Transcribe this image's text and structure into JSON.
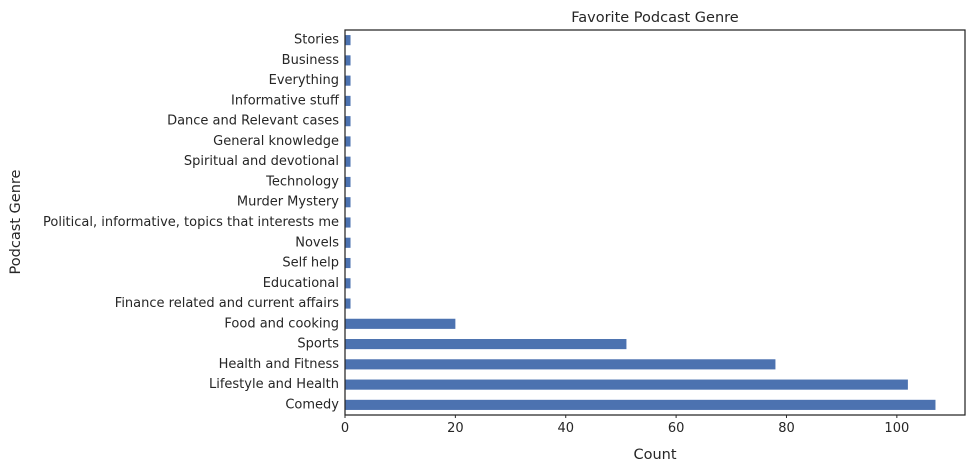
{
  "chart_data": {
    "type": "bar",
    "orientation": "horizontal",
    "title": "Favorite Podcast Genre",
    "xlabel": "Count",
    "ylabel": "Podcast Genre",
    "categories": [
      "Comedy",
      "Lifestyle and Health",
      "Health and Fitness",
      "Sports",
      "Food and cooking",
      "Finance related and current affairs",
      "Educational ",
      "Self help",
      "Novels",
      "Political, informative, topics that interests me",
      "Murder Mystery ",
      "Technology",
      "Spiritual and devotional",
      "General knowledge ",
      "Dance and Relevant cases ",
      "Informative stuff",
      "Everything",
      "Business",
      "Stories "
    ],
    "values": [
      107,
      102,
      78,
      51,
      20,
      1,
      1,
      1,
      1,
      1,
      1,
      1,
      1,
      1,
      1,
      1,
      1,
      1,
      1
    ],
    "xlim": [
      0,
      112.35
    ],
    "xticks": [
      0,
      20,
      40,
      60,
      80,
      100
    ],
    "grid": false,
    "legend": "none",
    "bar_color": "#4c72b0"
  }
}
